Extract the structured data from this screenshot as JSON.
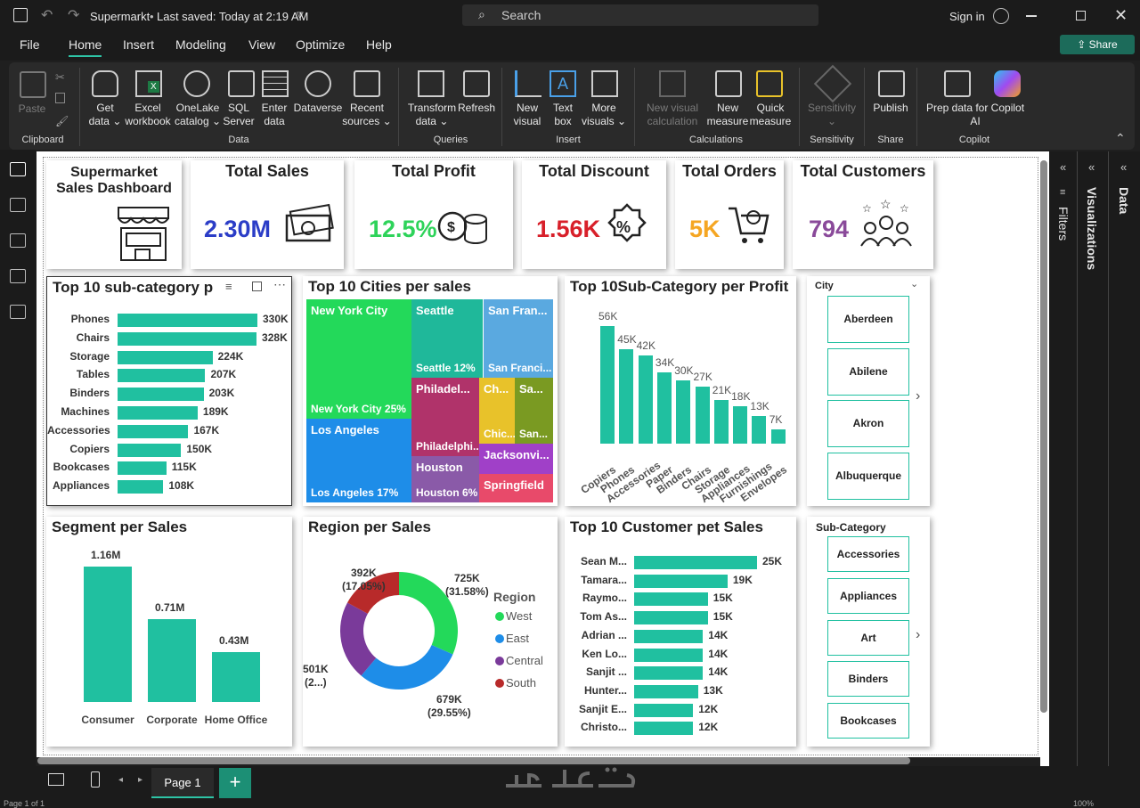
{
  "titlebar": {
    "filename": "Supermarkt",
    "saved": "Last saved: Today at 2:19 AM",
    "search_placeholder": "Search",
    "signin": "Sign in"
  },
  "menu": {
    "file": "File",
    "home": "Home",
    "insert": "Insert",
    "modeling": "Modeling",
    "view": "View",
    "optimize": "Optimize",
    "help": "Help",
    "share": "Share"
  },
  "ribbon": {
    "paste": "Paste",
    "clipboard": "Clipboard",
    "getdata1": "Get",
    "getdata2": "data",
    "excel1": "Excel",
    "excel2": "workbook",
    "onelake1": "OneLake",
    "onelake2": "catalog",
    "sql1": "SQL",
    "sql2": "Server",
    "enter1": "Enter",
    "enter2": "data",
    "dataverse": "Dataverse",
    "recent1": "Recent",
    "recent2": "sources",
    "data": "Data",
    "transform1": "Transform",
    "transform2": "data",
    "refresh": "Refresh",
    "queries": "Queries",
    "newvisual1": "New",
    "newvisual2": "visual",
    "textbox1": "Text",
    "textbox2": "box",
    "more1": "More",
    "more2": "visuals",
    "insert": "Insert",
    "newvc1": "New visual",
    "newvc2": "calculation",
    "newm1": "New",
    "newm2": "measure",
    "quick1": "Quick",
    "quick2": "measure",
    "calculations": "Calculations",
    "sens": "Sensitivity",
    "sensg": "Sensitivity",
    "publish": "Publish",
    "shareg": "Share",
    "prep1": "Prep data for Copilot",
    "prep2": "AI",
    "copilot": "Copilot"
  },
  "panels": {
    "filters": "Filters",
    "visualizations": "Visualizations",
    "data": "Data"
  },
  "kpis": {
    "title1": "Supermarket",
    "title2": "Sales Dashboard",
    "sales_title": "Total Sales",
    "sales_val": "2.30M",
    "profit_title": "Total Profit",
    "profit_val": "12.5%",
    "discount_title": "Total Discount",
    "discount_val": "1.56K",
    "orders_title": "Total Orders",
    "orders_val": "5K",
    "customers_title": "Total Customers",
    "customers_val": "794"
  },
  "colors": {
    "sales": "#2b3dc7",
    "profit": "#2ed35a",
    "discount": "#d8202a",
    "orders": "#f5a623",
    "customers": "#8a4a9a",
    "bar": "#20c0a0"
  },
  "chart_data": [
    {
      "type": "bar",
      "title": "Top 10 sub-category p",
      "orientation": "horizontal",
      "categories": [
        "Phones",
        "Chairs",
        "Storage",
        "Tables",
        "Binders",
        "Machines",
        "Accessories",
        "Copiers",
        "Bookcases",
        "Appliances"
      ],
      "values": [
        330,
        328,
        224,
        207,
        203,
        189,
        167,
        150,
        115,
        108
      ],
      "labels": [
        "330K",
        "328K",
        "224K",
        "207K",
        "203K",
        "189K",
        "167K",
        "150K",
        "115K",
        "108K"
      ]
    },
    {
      "type": "heatmap",
      "title": "Top 10 Cities per sales",
      "tiles": [
        {
          "name": "New York City",
          "sub": "New York City 25%",
          "color": "#23d95a"
        },
        {
          "name": "Seattle",
          "sub": "Seattle 12%",
          "color": "#1fb89a"
        },
        {
          "name": "San Fran...",
          "sub": "San Franci...",
          "color": "#5aa9e0"
        },
        {
          "name": "Los Angeles",
          "sub": "Los Angeles 17%",
          "color": "#1e8de8"
        },
        {
          "name": "Philadel...",
          "sub": "Philadelphi...",
          "color": "#b0336a"
        },
        {
          "name": "Ch...",
          "sub": "Chic...",
          "color": "#e8c22a"
        },
        {
          "name": "Sa...",
          "sub": "San...",
          "color": "#7a9a22"
        },
        {
          "name": "Jacksonvi...",
          "sub": "",
          "color": "#a040c8"
        },
        {
          "name": "Houston",
          "sub": "Houston 6%",
          "color": "#8a5aa8"
        },
        {
          "name": "Springfield",
          "sub": "",
          "color": "#e84a6a"
        }
      ]
    },
    {
      "type": "bar",
      "title": "Top 10Sub-Category per Profit",
      "categories": [
        "Copiers",
        "Phones",
        "Accessories",
        "Paper",
        "Binders",
        "Chairs",
        "Storage",
        "Appliances",
        "Furnishings",
        "Envelopes"
      ],
      "values": [
        56,
        45,
        42,
        34,
        30,
        27,
        21,
        18,
        13,
        7
      ],
      "labels": [
        "56K",
        "45K",
        "42K",
        "34K",
        "30K",
        "27K",
        "21K",
        "18K",
        "13K",
        "7K"
      ]
    },
    {
      "type": "bar",
      "title": "Segment per Sales",
      "categories": [
        "Consumer",
        "Corporate",
        "Home Office"
      ],
      "values": [
        1.16,
        0.71,
        0.43
      ],
      "labels": [
        "1.16M",
        "0.71M",
        "0.43M"
      ]
    },
    {
      "type": "pie",
      "title": "Region per Sales",
      "legend_title": "Region",
      "series": [
        {
          "name": "West",
          "value": 725,
          "label1": "725K",
          "label2": "(31.58%)",
          "color": "#23d95a"
        },
        {
          "name": "East",
          "value": 679,
          "label1": "679K",
          "label2": "(29.55%)",
          "color": "#1e8de8"
        },
        {
          "name": "Central",
          "value": 501,
          "label1": "501K",
          "label2": "(2...)",
          "color": "#7a3a9a"
        },
        {
          "name": "South",
          "value": 392,
          "label1": "392K",
          "label2": "(17.05%)",
          "color": "#b82a2a"
        }
      ]
    },
    {
      "type": "bar",
      "title": "Top 10 Customer pet Sales",
      "orientation": "horizontal",
      "categories": [
        "Sean M...",
        "Tamara...",
        "Raymo...",
        "Tom As...",
        "Adrian ...",
        "Ken Lo...",
        "Sanjit ...",
        "Hunter...",
        "Sanjit E...",
        "Christo..."
      ],
      "values": [
        25,
        19,
        15,
        15,
        14,
        14,
        14,
        13,
        12,
        12
      ],
      "labels": [
        "25K",
        "19K",
        "15K",
        "15K",
        "14K",
        "14K",
        "14K",
        "13K",
        "12K",
        "12K"
      ]
    }
  ],
  "slicers": {
    "city_title": "City",
    "cities": [
      "Aberdeen",
      "Abilene",
      "Akron",
      "Albuquerque"
    ],
    "sub_title": "Sub-Category",
    "subs": [
      "Accessories",
      "Appliances",
      "Art",
      "Binders",
      "Bookcases"
    ]
  },
  "bottom": {
    "page1": "Page 1",
    "status": "Page 1 of 1",
    "zoom": "100%"
  }
}
